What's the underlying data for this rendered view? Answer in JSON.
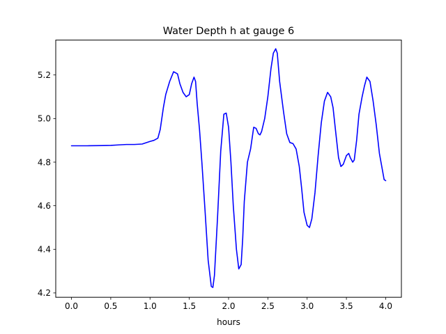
{
  "chart_data": {
    "type": "line",
    "title": "Water Depth h at gauge 6",
    "xlabel": "hours",
    "ylabel": "",
    "xlim": [
      -0.2,
      4.2
    ],
    "ylim": [
      4.18,
      5.36
    ],
    "xticks": [
      0.0,
      0.5,
      1.0,
      1.5,
      2.0,
      2.5,
      3.0,
      3.5,
      4.0
    ],
    "xtick_labels": [
      "0.0",
      "0.5",
      "1.0",
      "1.5",
      "2.0",
      "2.5",
      "3.0",
      "3.5",
      "4.0"
    ],
    "yticks": [
      4.2,
      4.4,
      4.6,
      4.8,
      5.0,
      5.2
    ],
    "ytick_labels": [
      "4.2",
      "4.4",
      "4.6",
      "4.8",
      "5.0",
      "5.2"
    ],
    "grid": false,
    "series": [
      {
        "color": "#0000ff",
        "x": [
          0.0,
          0.2,
          0.4,
          0.5,
          0.6,
          0.7,
          0.8,
          0.9,
          1.0,
          1.05,
          1.1,
          1.13,
          1.17,
          1.2,
          1.25,
          1.3,
          1.35,
          1.38,
          1.42,
          1.46,
          1.5,
          1.53,
          1.56,
          1.58,
          1.6,
          1.63,
          1.66,
          1.7,
          1.74,
          1.78,
          1.8,
          1.82,
          1.86,
          1.9,
          1.94,
          1.97,
          2.0,
          2.03,
          2.06,
          2.1,
          2.13,
          2.16,
          2.18,
          2.2,
          2.24,
          2.28,
          2.32,
          2.35,
          2.38,
          2.4,
          2.42,
          2.46,
          2.5,
          2.54,
          2.57,
          2.6,
          2.62,
          2.65,
          2.7,
          2.74,
          2.78,
          2.82,
          2.86,
          2.9,
          2.93,
          2.96,
          3.0,
          3.03,
          3.06,
          3.1,
          3.14,
          3.18,
          3.22,
          3.26,
          3.3,
          3.33,
          3.36,
          3.4,
          3.43,
          3.46,
          3.5,
          3.53,
          3.55,
          3.58,
          3.6,
          3.63,
          3.66,
          3.7,
          3.73,
          3.76,
          3.8,
          3.84,
          3.88,
          3.92,
          3.96,
          3.98,
          4.0
        ],
        "y": [
          4.875,
          4.875,
          4.876,
          4.877,
          4.879,
          4.881,
          4.881,
          4.883,
          4.895,
          4.9,
          4.91,
          4.95,
          5.05,
          5.11,
          5.17,
          5.215,
          5.205,
          5.16,
          5.12,
          5.1,
          5.11,
          5.16,
          5.19,
          5.17,
          5.07,
          4.95,
          4.8,
          4.58,
          4.35,
          4.23,
          4.225,
          4.28,
          4.55,
          4.85,
          5.02,
          5.025,
          4.96,
          4.8,
          4.6,
          4.4,
          4.31,
          4.33,
          4.45,
          4.62,
          4.8,
          4.86,
          4.96,
          4.955,
          4.93,
          4.925,
          4.94,
          5.0,
          5.1,
          5.23,
          5.3,
          5.32,
          5.3,
          5.17,
          5.03,
          4.93,
          4.89,
          4.885,
          4.86,
          4.78,
          4.68,
          4.57,
          4.51,
          4.5,
          4.54,
          4.66,
          4.83,
          4.98,
          5.08,
          5.12,
          5.1,
          5.05,
          4.95,
          4.82,
          4.78,
          4.79,
          4.83,
          4.84,
          4.82,
          4.8,
          4.81,
          4.9,
          5.02,
          5.1,
          5.15,
          5.19,
          5.17,
          5.08,
          4.97,
          4.84,
          4.76,
          4.72,
          4.715
        ]
      }
    ]
  }
}
